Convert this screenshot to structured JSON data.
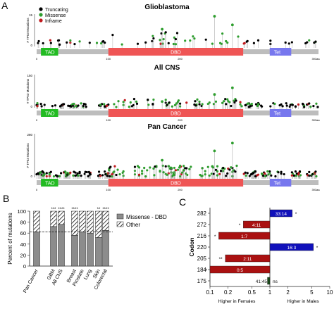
{
  "panel_labels": {
    "a": "A",
    "b": "B",
    "c": "C"
  },
  "panel_a": {
    "legend": [
      {
        "label": "Truncating",
        "color": "#000000"
      },
      {
        "label": "Missense",
        "color": "#2e9e2e"
      },
      {
        "label": "Inframe",
        "color": "#c0181c"
      }
    ],
    "domains": [
      {
        "label": "TAD",
        "start": 6,
        "end": 30,
        "color": "#22bb22"
      },
      {
        "label": "DBD",
        "start": 100,
        "end": 288,
        "color": "#ef5555"
      },
      {
        "label": "Tet",
        "start": 325,
        "end": 355,
        "color": "#7777ee"
      }
    ],
    "tick_labels": {
      "zero": "0",
      "hundred": "100",
      "twohundred": "200",
      "end": "393aa"
    },
    "ylabel": "# TP53 Mutations",
    "plots": [
      {
        "title": "Glioblastoma",
        "ymax_label": "15",
        "ymax": 15,
        "yzero": "0",
        "hotspots": [
          {
            "pos": 248,
            "value": 14,
            "color": "#2e9e2e"
          },
          {
            "pos": 273,
            "value": 10,
            "color": "#2e9e2e"
          },
          {
            "pos": 175,
            "value": 8,
            "color": "#2e9e2e"
          }
        ]
      },
      {
        "title": "All CNS",
        "ymax_label": "150",
        "ymax": 150,
        "yzero": "0",
        "hotspots": [
          {
            "pos": 273,
            "value": 90,
            "color": "#2e9e2e"
          },
          {
            "pos": 248,
            "value": 60,
            "color": "#2e9e2e"
          },
          {
            "pos": 175,
            "value": 28,
            "color": "#2e9e2e"
          }
        ]
      },
      {
        "title": "Pan Cancer",
        "ymax_label": "280",
        "ymax": 280,
        "yzero": "0",
        "hotspots": [
          {
            "pos": 273,
            "value": 220,
            "color": "#2e9e2e"
          },
          {
            "pos": 248,
            "value": 170,
            "color": "#2e9e2e"
          },
          {
            "pos": 175,
            "value": 110,
            "color": "#2e9e2e"
          },
          {
            "pos": 245,
            "value": 70,
            "color": "#2e9e2e"
          }
        ]
      }
    ]
  },
  "chart_data": [
    {
      "type": "bar",
      "panel": "B",
      "ylabel": "Percent of mutations",
      "ylim": [
        0,
        100
      ],
      "yticks": [
        "0",
        "20",
        "40",
        "60",
        "80",
        "100"
      ],
      "categories": [
        "Pan Cancer",
        "GBM",
        "All CNS",
        "Breast",
        "Prostate",
        "Lung",
        "Skin",
        "Colorectal"
      ],
      "series": [
        {
          "name": "Missense - DBD",
          "values": [
            62,
            72,
            76,
            56,
            62,
            60,
            52,
            65
          ],
          "color": "#8c8c8c"
        },
        {
          "name": "Other",
          "values": [
            38,
            28,
            24,
            44,
            38,
            40,
            48,
            35
          ],
          "color": "hatched"
        }
      ],
      "significance": [
        "",
        "***",
        "****",
        "****",
        "",
        "",
        "**",
        "****"
      ],
      "reference_line": 62,
      "legend": "right"
    },
    {
      "type": "bar",
      "panel": "C",
      "orientation": "horizontal",
      "ylabel": "Codon",
      "xscale": "log",
      "xlim": [
        0.1,
        10
      ],
      "xticks": [
        "0.1",
        "0.2",
        "0.5",
        "1",
        "2",
        "5",
        "10"
      ],
      "xlabel_left": "Higher in Females",
      "xlabel_right": "Higher in Males",
      "categories": [
        "282",
        "272",
        "216",
        "220",
        "205",
        "184",
        "175"
      ],
      "values": [
        2.36,
        0.36,
        0.14,
        5.33,
        0.18,
        0.1,
        0.91
      ],
      "labels": [
        "33:14",
        "4:11",
        "1:7",
        "16:3",
        "2:11",
        "0:5",
        "41:45"
      ],
      "colors": [
        "#1111bb",
        "#aa1111",
        "#aa1111",
        "#1111bb",
        "#aa1111",
        "#aa1111",
        "#1a4a1a"
      ],
      "significance": [
        "*",
        "*",
        "*",
        "*",
        "**",
        "*",
        "ns"
      ]
    }
  ]
}
